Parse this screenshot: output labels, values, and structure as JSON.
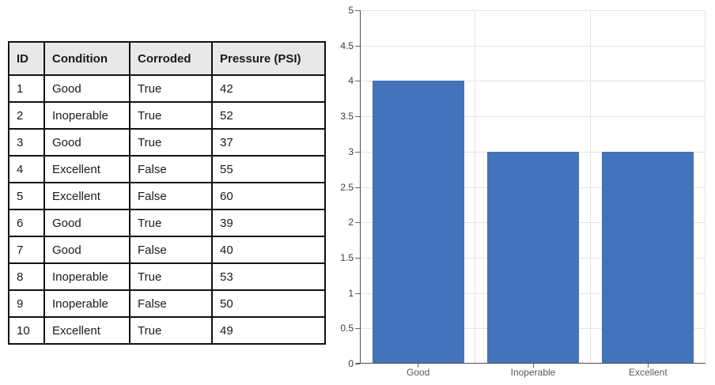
{
  "table": {
    "columns": [
      "ID",
      "Condition",
      "Corroded",
      "Pressure (PSI)"
    ],
    "rows": [
      [
        "1",
        "Good",
        "True",
        "42"
      ],
      [
        "2",
        "Inoperable",
        "True",
        "52"
      ],
      [
        "3",
        "Good",
        "True",
        "37"
      ],
      [
        "4",
        "Excellent",
        "False",
        "55"
      ],
      [
        "5",
        "Excellent",
        "False",
        "60"
      ],
      [
        "6",
        "Good",
        "True",
        "39"
      ],
      [
        "7",
        "Good",
        "False",
        "40"
      ],
      [
        "8",
        "Inoperable",
        "True",
        "53"
      ],
      [
        "9",
        "Inoperable",
        "False",
        "50"
      ],
      [
        "10",
        "Excellent",
        "True",
        "49"
      ]
    ]
  },
  "chart_data": {
    "type": "bar",
    "categories": [
      "Good",
      "Inoperable",
      "Excellent"
    ],
    "values": [
      4,
      3,
      3
    ],
    "title": "",
    "xlabel": "",
    "ylabel": "",
    "ylim": [
      0,
      5
    ],
    "ytick_step": 0.5,
    "grid": "on",
    "legend_position": "none",
    "bar_color": "#4273BB",
    "gridline_color": "#E4E4E4",
    "axis_color": "#4d4d4d",
    "tick_label_color": "#3b3b3b",
    "category_label_color": "#595959"
  }
}
